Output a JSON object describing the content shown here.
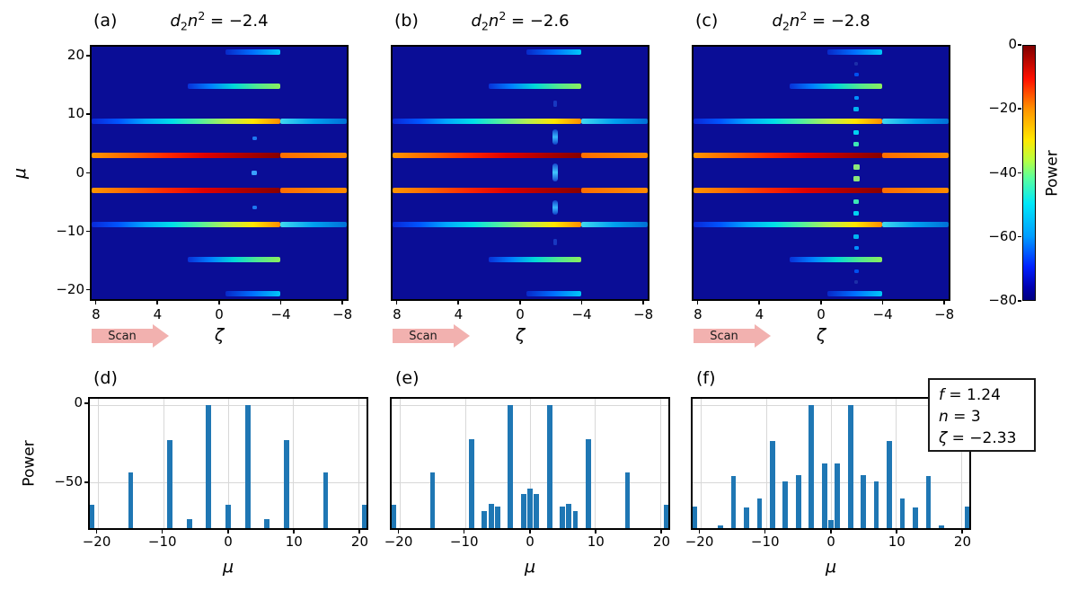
{
  "panel_labels": {
    "a": "(a)",
    "b": "(b)",
    "c": "(c)",
    "d": "(d)",
    "e": "(e)",
    "f": "(f)"
  },
  "titles": {
    "a": {
      "v1": "d",
      "s1": "2",
      "v2": "n",
      "s2": "2",
      "rest": " = −2.4"
    },
    "b": {
      "v1": "d",
      "s1": "2",
      "v2": "n",
      "s2": "2",
      "rest": " = −2.6"
    },
    "c": {
      "v1": "d",
      "s1": "2",
      "v2": "n",
      "s2": "2",
      "rest": " = −2.8"
    }
  },
  "axes": {
    "top_xlabel": "ζ",
    "top_ylabel": "μ",
    "bottom_xlabel": "μ",
    "bottom_ylabel": "Power"
  },
  "scan_arrow": {
    "label": "Scan",
    "fill": "#f2b1af"
  },
  "colorbar": {
    "label": "Power",
    "tick_values": [
      0,
      -20,
      -40,
      -60,
      -80
    ],
    "tick_labels": [
      "0",
      "−20",
      "−40",
      "−60",
      "−80"
    ],
    "gradient": [
      "#7f0000",
      "#ff1000",
      "#ff9400",
      "#ffe800",
      "#b8ff40",
      "#5aff9e",
      "#00e8f8",
      "#009cff",
      "#0020ff",
      "#0000b0",
      "#000080"
    ],
    "gradient_stops": [
      0,
      13,
      25,
      37,
      45,
      52,
      62,
      75,
      87,
      95,
      100
    ]
  },
  "legend": {
    "lines": [
      {
        "var": "f",
        "rest": " = 1.24"
      },
      {
        "var": "n",
        "rest": " = 3"
      },
      {
        "var": "ζ",
        "rest": " = −2.33"
      }
    ]
  },
  "colors": {
    "bar": "#1f77b4",
    "heatmap_bg": "#0a0d96",
    "grid": "#d8d8d8",
    "frame": "#000000"
  },
  "heatmap_common": {
    "stripes": [
      {
        "mu": 21,
        "z_from": -0.4,
        "z_to": -4,
        "colors": [
          "#0828c8",
          "#0070ff",
          "#00c8f8"
        ]
      },
      {
        "mu": 15,
        "z_from": 2.1,
        "z_to": -4,
        "colors": [
          "#0830d8",
          "#0080ff",
          "#00d8d8",
          "#50e890",
          "#8cee5c"
        ]
      },
      {
        "mu": 9,
        "z_from": 8.4,
        "z_to": -4,
        "colors": [
          "#0a28d8",
          "#0055ff",
          "#00a8ff",
          "#00e0e8",
          "#50f0a0",
          "#b4f050",
          "#ffe600",
          "#ff8c00"
        ]
      },
      {
        "mu": 9,
        "z_from": -4,
        "z_to": -8.4,
        "colors": [
          "#40d8f0",
          "#00a0f0",
          "#0070d8"
        ]
      },
      {
        "mu": 3,
        "z_from": 8.4,
        "z_to": -4,
        "colors": [
          "#ff9800",
          "#ff6400",
          "#ff2800",
          "#e00000",
          "#b00000",
          "#870000"
        ]
      },
      {
        "mu": 3,
        "z_from": -4,
        "z_to": -8.4,
        "colors": [
          "#ff6e00",
          "#ff8c00"
        ]
      },
      {
        "mu": -3,
        "z_from": 8.4,
        "z_to": -4,
        "colors": [
          "#ff9800",
          "#ff6400",
          "#ff2800",
          "#e00000",
          "#b00000",
          "#870000"
        ]
      },
      {
        "mu": -3,
        "z_from": -4,
        "z_to": -8.4,
        "colors": [
          "#ff6e00",
          "#ff8c00"
        ]
      },
      {
        "mu": -9,
        "z_from": 8.4,
        "z_to": -4,
        "colors": [
          "#0a28d8",
          "#0055ff",
          "#00a8ff",
          "#00e0e8",
          "#50f0a0",
          "#b4f050",
          "#ffe600",
          "#ff8c00"
        ]
      },
      {
        "mu": -9,
        "z_from": -4,
        "z_to": -8.4,
        "colors": [
          "#40d8f0",
          "#00a0f0",
          "#0070d8"
        ]
      },
      {
        "mu": -15,
        "z_from": 2.1,
        "z_to": -4,
        "colors": [
          "#0830d8",
          "#0080ff",
          "#00d8d8",
          "#50e890",
          "#8cee5c"
        ]
      },
      {
        "mu": -21,
        "z_from": -0.4,
        "z_to": -4,
        "colors": [
          "#0828c8",
          "#0070ff",
          "#00c8f8"
        ]
      }
    ]
  },
  "chart_data": [
    {
      "id": "heatmap-a",
      "type": "heatmap",
      "panel": "a",
      "title": "d2n2 = −2.4",
      "xlabel": "ζ",
      "ylabel": "μ",
      "xlim": [
        8.4,
        -8.4
      ],
      "ylim": [
        21.9,
        -21.9
      ],
      "x_ticks": [
        8,
        4,
        0,
        -4,
        -8
      ],
      "x_tick_labels": [
        "8",
        "4",
        "0",
        "−4",
        "−8"
      ],
      "y_ticks": [
        20,
        10,
        0,
        -10,
        -20
      ],
      "y_tick_labels": [
        "20",
        "10",
        "0",
        "−10",
        "−20"
      ],
      "value_range_db": [
        0,
        -80
      ],
      "colormap": "jet",
      "dots": [
        {
          "mu": 6,
          "z": -2.33,
          "w": 5,
          "h": 4,
          "color": "#1e78f0"
        },
        {
          "mu": 0,
          "z": -2.33,
          "w": 6,
          "h": 5,
          "color": "#3aa0ff"
        },
        {
          "mu": -6,
          "z": -2.33,
          "w": 5,
          "h": 4,
          "color": "#1e78f0"
        }
      ]
    },
    {
      "id": "heatmap-b",
      "type": "heatmap",
      "panel": "b",
      "title": "d2n2 = −2.6",
      "xlabel": "ζ",
      "ylabel": "μ",
      "xlim": [
        8.4,
        -8.4
      ],
      "ylim": [
        21.9,
        -21.9
      ],
      "x_ticks": [
        8,
        4,
        0,
        -4,
        -8
      ],
      "x_tick_labels": [
        "8",
        "4",
        "0",
        "−4",
        "−8"
      ],
      "y_ticks": [
        20,
        10,
        0,
        -10,
        -20
      ],
      "y_tick_labels": [
        "20",
        "10",
        "0",
        "−10",
        "−20"
      ],
      "value_range_db": [
        0,
        -80
      ],
      "colormap": "jet",
      "dots": [
        {
          "mu": 12,
          "z": -2.33,
          "w": 4,
          "h": 7,
          "color": "#1838c0"
        },
        {
          "mu": -12,
          "z": -2.33,
          "w": 4,
          "h": 7,
          "color": "#1838c0"
        }
      ],
      "smudges": [
        {
          "mu_center": 6.2,
          "mu_span": 2.6,
          "z": -2.33,
          "colors": [
            "#1040c8",
            "#38b8ff",
            "#1040c8"
          ]
        },
        {
          "mu_center": 0.1,
          "mu_span": 3.0,
          "z": -2.33,
          "colors": [
            "#1848d0",
            "#40c8ff",
            "#1848d0"
          ]
        },
        {
          "mu_center": -6.0,
          "mu_span": 2.6,
          "z": -2.33,
          "colors": [
            "#1040c8",
            "#38b8ff",
            "#1040c8"
          ]
        }
      ]
    },
    {
      "id": "heatmap-c",
      "type": "heatmap",
      "panel": "c",
      "title": "d2n2 = −2.8",
      "xlabel": "ζ",
      "ylabel": "μ",
      "xlim": [
        8.4,
        -8.4
      ],
      "ylim": [
        21.9,
        -21.9
      ],
      "x_ticks": [
        8,
        4,
        0,
        -4,
        -8
      ],
      "x_tick_labels": [
        "8",
        "4",
        "0",
        "−4",
        "−8"
      ],
      "y_ticks": [
        20,
        10,
        0,
        -10,
        -20
      ],
      "y_tick_labels": [
        "20",
        "10",
        "0",
        "−10",
        "−20"
      ],
      "value_range_db": [
        0,
        -80
      ],
      "colormap": "jet",
      "dots": [
        {
          "mu": 19,
          "z": -2.33,
          "w": 4,
          "h": 4,
          "color": "#1c2fa8"
        },
        {
          "mu": 17,
          "z": -2.33,
          "w": 5,
          "h": 4,
          "color": "#0050f0"
        },
        {
          "mu": 13,
          "z": -2.33,
          "w": 5,
          "h": 4,
          "color": "#0090ff"
        },
        {
          "mu": 11,
          "z": -2.33,
          "w": 6,
          "h": 5,
          "color": "#00b4f0"
        },
        {
          "mu": 7,
          "z": -2.33,
          "w": 6,
          "h": 5,
          "color": "#00d2f0"
        },
        {
          "mu": 5,
          "z": -2.33,
          "w": 6,
          "h": 5,
          "color": "#3ce8b4"
        },
        {
          "mu": 1,
          "z": -2.33,
          "w": 7,
          "h": 6,
          "color": "#8ce87a"
        },
        {
          "mu": -1,
          "z": -2.33,
          "w": 7,
          "h": 6,
          "color": "#8ce87a"
        },
        {
          "mu": -5,
          "z": -2.33,
          "w": 6,
          "h": 5,
          "color": "#3ce8b4"
        },
        {
          "mu": -7,
          "z": -2.33,
          "w": 6,
          "h": 5,
          "color": "#00d2f0"
        },
        {
          "mu": -11,
          "z": -2.33,
          "w": 6,
          "h": 5,
          "color": "#00b4f0"
        },
        {
          "mu": -13,
          "z": -2.33,
          "w": 5,
          "h": 4,
          "color": "#0090ff"
        },
        {
          "mu": -17,
          "z": -2.33,
          "w": 5,
          "h": 4,
          "color": "#0050f0"
        },
        {
          "mu": -19,
          "z": -2.33,
          "w": 4,
          "h": 4,
          "color": "#1c2fa8"
        }
      ]
    },
    {
      "id": "bar-d",
      "type": "bar",
      "panel": "d",
      "xlabel": "μ",
      "ylabel": "Power",
      "xlim": [
        -21.3,
        21.3
      ],
      "ylim": [
        4,
        -80
      ],
      "x_ticks": [
        -20,
        -10,
        0,
        10,
        20
      ],
      "x_tick_labels": [
        "−20",
        "−10",
        "0",
        "10",
        "20"
      ],
      "y_ticks": [
        0,
        -50
      ],
      "y_tick_labels": [
        "0",
        "−50"
      ],
      "bar_width_pct": 1.88,
      "baseline": -80,
      "grid": true,
      "x": [
        -21,
        -15,
        -9,
        -6,
        -3,
        0,
        3,
        6,
        9,
        15,
        21
      ],
      "values": [
        -65,
        -44,
        -23,
        -74,
        0,
        -65,
        0,
        -74,
        -23,
        -44,
        -65
      ]
    },
    {
      "id": "bar-e",
      "type": "bar",
      "panel": "e",
      "xlabel": "μ",
      "ylabel": "Power",
      "xlim": [
        -21.3,
        21.3
      ],
      "ylim": [
        4,
        -80
      ],
      "x_ticks": [
        -20,
        -10,
        0,
        10,
        20
      ],
      "x_tick_labels": [
        "−20",
        "−10",
        "0",
        "10",
        "20"
      ],
      "y_ticks": [
        0,
        -50
      ],
      "y_tick_labels": [
        "0",
        "−50"
      ],
      "bar_width_pct": 1.88,
      "baseline": -80,
      "grid": true,
      "x": [
        -21,
        -15,
        -9,
        -7,
        -6,
        -5,
        -3,
        -1,
        0,
        1,
        3,
        5,
        6,
        7,
        9,
        15,
        21
      ],
      "values": [
        -65,
        -44,
        -22.5,
        -69,
        -64,
        -66,
        0,
        -58,
        -54.5,
        -58,
        0,
        -66,
        -64,
        -69,
        -22.5,
        -44,
        -65
      ]
    },
    {
      "id": "bar-f",
      "type": "bar",
      "panel": "f",
      "xlabel": "μ",
      "ylabel": "Power",
      "xlim": [
        -21.3,
        21.3
      ],
      "ylim": [
        4,
        -80
      ],
      "x_ticks": [
        -20,
        -10,
        0,
        10,
        20
      ],
      "x_tick_labels": [
        "−20",
        "−10",
        "0",
        "10",
        "20"
      ],
      "y_ticks": [
        0,
        -50
      ],
      "y_tick_labels": [
        "0",
        "−50"
      ],
      "bar_width_pct": 1.88,
      "baseline": -80,
      "grid": true,
      "x": [
        -21,
        -17,
        -15,
        -13,
        -11,
        -9,
        -7,
        -5,
        -3,
        -1,
        0,
        1,
        3,
        5,
        7,
        9,
        11,
        13,
        15,
        17,
        21
      ],
      "values": [
        -66,
        -78.5,
        -46,
        -66.5,
        -60.5,
        -23.5,
        -49.5,
        -45.5,
        0,
        -38,
        -75,
        -38,
        0,
        -45.5,
        -49.5,
        -23.5,
        -60.5,
        -66.5,
        -46,
        -78.5,
        -66
      ]
    }
  ]
}
